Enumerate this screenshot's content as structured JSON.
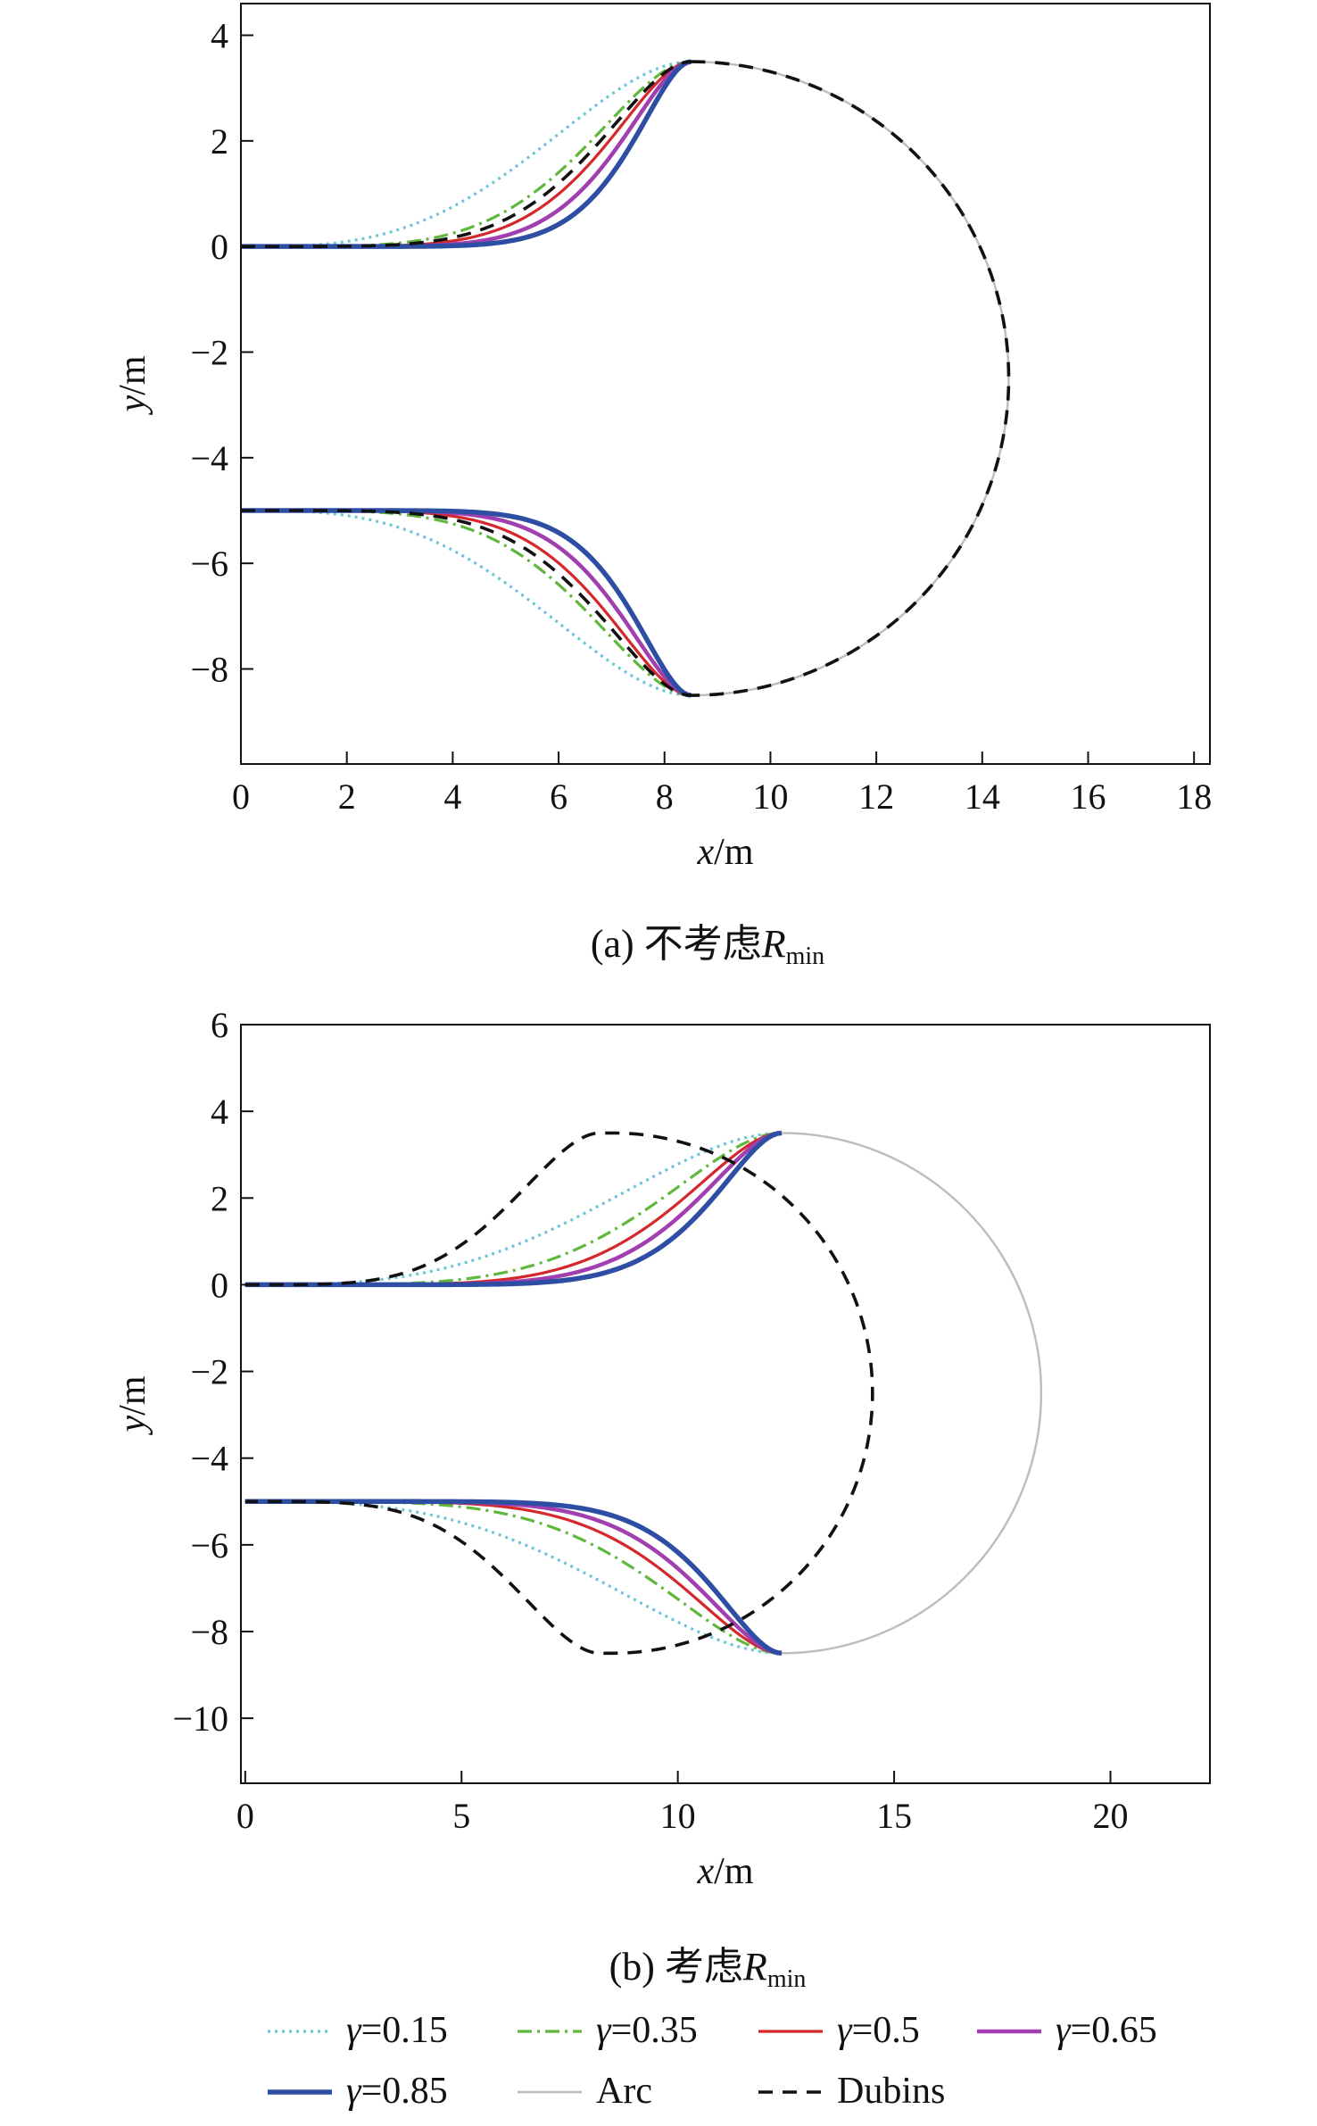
{
  "chart_data": [
    {
      "type": "line",
      "panel": "a",
      "caption_prefix": "(a) 不考虑",
      "caption_symbol": "R",
      "caption_sub": "min",
      "xlabel_var": "x",
      "xlabel_unit": "/m",
      "ylabel_var": "y",
      "ylabel_unit": "/m",
      "xlim": [
        0,
        18.3
      ],
      "ylim": [
        -9.8,
        4.6
      ],
      "xticks": [
        0,
        2,
        4,
        6,
        8,
        10,
        12,
        14,
        16,
        18
      ],
      "yticks": [
        4,
        2,
        0,
        -2,
        -4,
        -6,
        -8
      ],
      "ytick_labels": [
        "4",
        "2",
        "0",
        "−2",
        "−4",
        "−6",
        "−8"
      ],
      "grid": false,
      "arc": {
        "center_x": 8.5,
        "center_y": -2.5,
        "radius": 6.0,
        "y_top": 3.5,
        "y_bottom": -8.5
      },
      "series": [
        {
          "name": "γ=0.15",
          "x_end": 8.5,
          "y_start": 0,
          "y_end": 3.5,
          "shape": 0.15
        },
        {
          "name": "γ=0.35",
          "x_end": 8.5,
          "y_start": 0,
          "y_end": 3.5,
          "shape": 0.35
        },
        {
          "name": "γ=0.5",
          "x_end": 8.5,
          "y_start": 0,
          "y_end": 3.5,
          "shape": 0.5
        },
        {
          "name": "γ=0.65",
          "x_end": 8.5,
          "y_start": 0,
          "y_end": 3.5,
          "shape": 0.65
        },
        {
          "name": "γ=0.85",
          "x_end": 8.5,
          "y_start": 0,
          "y_end": 3.5,
          "shape": 0.85
        },
        {
          "name": "Dubins",
          "x_end": 8.5,
          "y_start": 0,
          "y_end": 3.5,
          "shape": 0.42
        }
      ]
    },
    {
      "type": "line",
      "panel": "b",
      "caption_prefix": "(b) 考虑",
      "caption_symbol": "R",
      "caption_sub": "min",
      "xlabel_var": "x",
      "xlabel_unit": "/m",
      "ylabel_var": "y",
      "ylabel_unit": "/m",
      "xlim": [
        -0.1,
        22.3
      ],
      "ylim": [
        -11.5,
        6.0
      ],
      "xticks": [
        0,
        5,
        10,
        15,
        20
      ],
      "yticks": [
        6,
        4,
        2,
        0,
        -2,
        -4,
        -6,
        -8,
        -10
      ],
      "ytick_labels": [
        "6",
        "4",
        "2",
        "0",
        "−2",
        "−4",
        "−6",
        "−8",
        "−10"
      ],
      "grid": false,
      "arc": {
        "center_x": 12.4,
        "center_y": -2.5,
        "radius": 6.0,
        "y_top": 3.5,
        "y_bottom": -8.5
      },
      "dubins_circle": {
        "center_x": 8.5,
        "center_y": -2.5,
        "radius": 6.0
      },
      "series": [
        {
          "name": "γ=0.15",
          "x_end": 12.4,
          "y_start": 0,
          "y_end": 3.5,
          "shape": 0.15
        },
        {
          "name": "γ=0.35",
          "x_end": 12.4,
          "y_start": 0,
          "y_end": 3.5,
          "shape": 0.35
        },
        {
          "name": "γ=0.5",
          "x_end": 12.4,
          "y_start": 0,
          "y_end": 3.5,
          "shape": 0.5
        },
        {
          "name": "γ=0.65",
          "x_end": 12.4,
          "y_start": 0,
          "y_end": 3.5,
          "shape": 0.65
        },
        {
          "name": "γ=0.85",
          "x_end": 12.4,
          "y_start": 0,
          "y_end": 3.5,
          "shape": 0.85
        }
      ]
    }
  ],
  "legend": {
    "placement": "bottom",
    "entries": [
      {
        "id": "g015",
        "var": "γ",
        "text": "=0.15",
        "color": "#6cc5d8",
        "style": "dotted"
      },
      {
        "id": "g035",
        "var": "γ",
        "text": "=0.35",
        "color": "#5fb83c",
        "style": "dashdot"
      },
      {
        "id": "g050",
        "var": "γ",
        "text": "=0.5",
        "color": "#d4282b",
        "style": "solid"
      },
      {
        "id": "g065",
        "var": "γ",
        "text": "=0.65",
        "color": "#a23fb0",
        "style": "solid-thick"
      },
      {
        "id": "g085",
        "var": "γ",
        "text": "=0.85",
        "color": "#2d4ea3",
        "style": "solid-thicker"
      },
      {
        "id": "arc",
        "var": "",
        "text": "Arc",
        "color": "#bdbdbd",
        "style": "solid-thin"
      },
      {
        "id": "dubins",
        "var": "",
        "text": "Dubins",
        "color": "#111111",
        "style": "dashed"
      }
    ]
  }
}
